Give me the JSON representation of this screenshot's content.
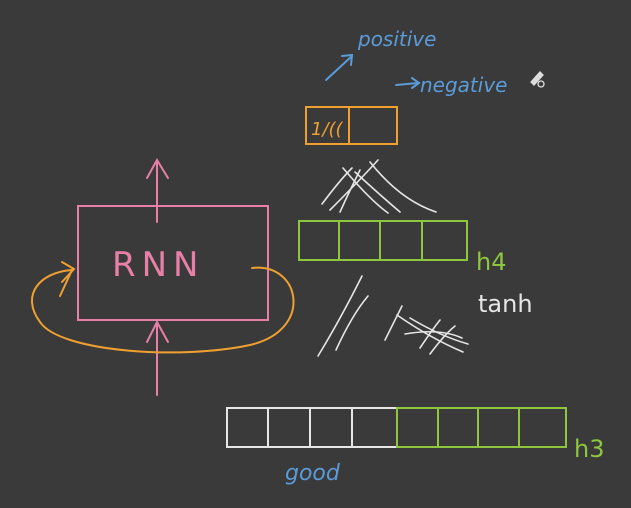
{
  "colors": {
    "background": "#3a3a3a",
    "pink": "#e87fa6",
    "orange": "#f0a030",
    "green": "#8ec63f",
    "white": "#e6e6e6",
    "blue": "#5b9bd8"
  },
  "labels": {
    "rnn": "RNN",
    "positive": "positive",
    "negative": "negative",
    "h4": "h4",
    "h3": "h3",
    "tanh": "tanh",
    "good": "good",
    "output_mark": "1/(("
  },
  "tools": {
    "cursor_icon": "pen-cursor-icon"
  }
}
